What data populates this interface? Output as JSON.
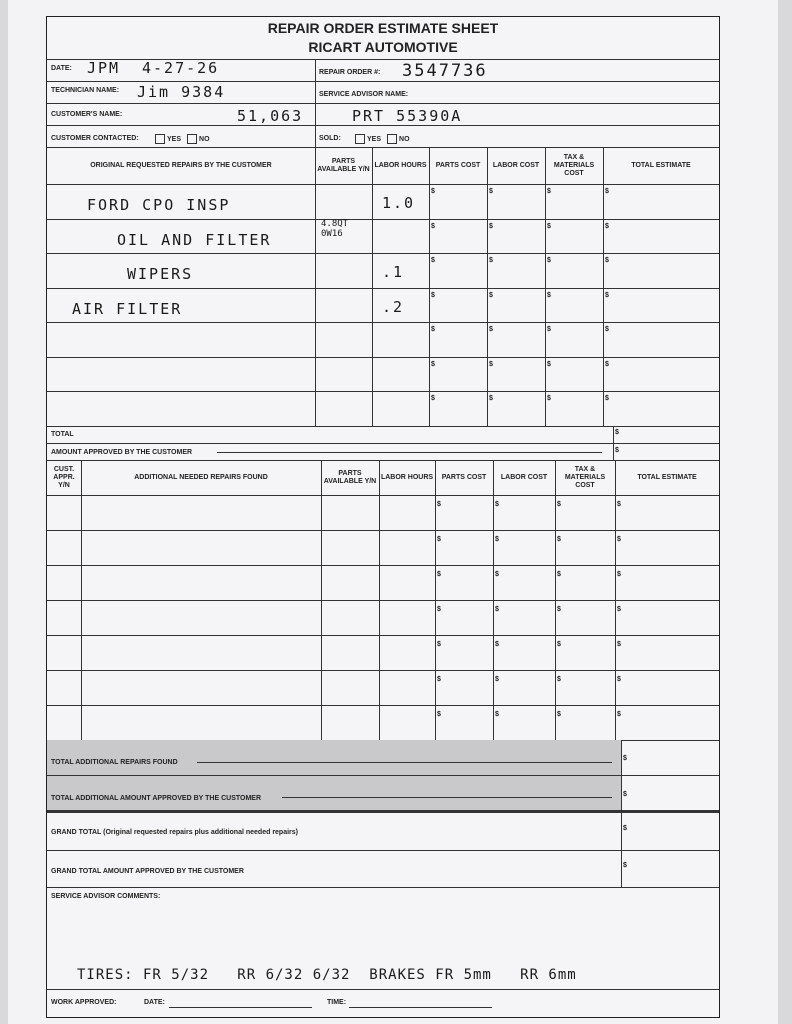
{
  "title": "REPAIR ORDER ESTIMATE SHEET",
  "company": "RICART AUTOMOTIVE",
  "fields": {
    "date_label": "DATE:",
    "date_value": "4-27-26",
    "date_initials": "JPM",
    "repair_order_label": "REPAIR ORDER #:",
    "repair_order_value": "3547736",
    "technician_label": "TECHNICIAN NAME:",
    "technician_value": "Jim 9384",
    "service_advisor_label": "SERVICE ADVISOR NAME:",
    "customer_label": "CUSTOMER'S NAME:",
    "customer_value": "51,063",
    "customer_value2": "PRT 55390A",
    "contacted_label": "CUSTOMER CONTACTED:",
    "sold_label": "SOLD:",
    "yes": "YES",
    "no": "NO"
  },
  "table1": {
    "headers": [
      "ORIGINAL REQUESTED REPAIRS BY THE CUSTOMER",
      "PARTS AVAILABLE Y/N",
      "LABOR HOURS",
      "PARTS COST",
      "LABOR COST",
      "TAX & MATERIALS COST",
      "TOTAL ESTIMATE"
    ],
    "rows": [
      {
        "desc": "FORD CPO INSP",
        "parts": "",
        "labor": "1.0"
      },
      {
        "desc": "OIL AND FILTER",
        "parts": "4.8QT 0W16",
        "labor": ""
      },
      {
        "desc": "WIPERS",
        "parts": "",
        "labor": ".1"
      },
      {
        "desc": "AIR FILTER",
        "parts": "",
        "labor": ".2"
      },
      {
        "desc": "",
        "parts": "",
        "labor": ""
      },
      {
        "desc": "",
        "parts": "",
        "labor": ""
      },
      {
        "desc": "",
        "parts": "",
        "labor": ""
      }
    ],
    "currency": "$",
    "total_label": "TOTAL",
    "approved_label": "AMOUNT APPROVED BY THE CUSTOMER"
  },
  "table2": {
    "headers": [
      "CUST. APPR. Y/N",
      "ADDITIONAL NEEDED REPAIRS FOUND",
      "PARTS AVAILABLE Y/N",
      "LABOR HOURS",
      "PARTS COST",
      "LABOR COST",
      "TAX & MATERIALS COST",
      "TOTAL ESTIMATE"
    ],
    "row_count": 7,
    "total_found_label": "TOTAL ADDITIONAL REPAIRS FOUND",
    "total_approved_label": "TOTAL ADDITIONAL AMOUNT APPROVED BY THE CUSTOMER"
  },
  "grand_total_label": "GRAND TOTAL (Original requested repairs plus additional needed repairs)",
  "grand_total_approved_label": "GRAND TOTAL AMOUNT APPROVED BY THE CUSTOMER",
  "comments_label": "SERVICE ADVISOR COMMENTS:",
  "comments_value": "TIRES: FR 5/32   RR 6/32 6/32  BRAKES FR 5mm   RR 6mm",
  "work_approved_label": "WORK APPROVED:",
  "date_label": "DATE:",
  "time_label": "TIME:"
}
